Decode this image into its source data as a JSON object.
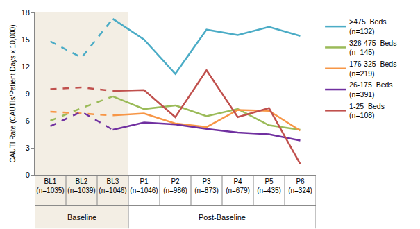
{
  "chart_data": {
    "type": "line",
    "y_label": "CAUTI Rate (CAUTIs/Patient Days x 10,000)",
    "categories": [
      "BL1\n(n=1035)",
      "BL2\n(n=1039)",
      "BL3\n(n=1046)",
      "P1\n(n=1046)",
      "P2\n(n=986)",
      "P3\n(n=873)",
      "P4\n(n=679)",
      "P5\n(n=435)",
      "P6\n(n=324)"
    ],
    "groups": [
      {
        "label": "Baseline",
        "count": 3,
        "line_style": "dashed"
      },
      {
        "label": "Post-Baseline",
        "count": 6,
        "line_style": "solid"
      }
    ],
    "series": [
      {
        "name": ">475  Beds\n(n=132)",
        "color": "#4bacc6",
        "values": [
          14.8,
          13.0,
          17.3,
          15.0,
          11.2,
          16.1,
          15.5,
          16.4,
          15.4
        ]
      },
      {
        "name": "326-475  Beds\n(n=145)",
        "color": "#9bbb59",
        "values": [
          6.0,
          7.4,
          8.7,
          7.3,
          7.7,
          6.5,
          7.3,
          5.5,
          5.0
        ]
      },
      {
        "name": "176-325  Beds\n(n=219)",
        "color": "#f79646",
        "values": [
          7.0,
          6.8,
          6.6,
          6.8,
          5.7,
          5.3,
          7.2,
          7.1,
          4.9
        ]
      },
      {
        "name": "26-175  Beds\n(n=391)",
        "color": "#7030a0",
        "values": [
          5.4,
          7.0,
          5.0,
          5.8,
          5.6,
          5.1,
          4.7,
          4.5,
          3.8
        ]
      },
      {
        "name": "1-25  Beds\n(n=108)",
        "color": "#c0504d",
        "values": [
          9.5,
          9.7,
          9.3,
          9.4,
          6.4,
          11.6,
          6.4,
          7.4,
          1.2
        ]
      }
    ],
    "ylim": [
      0,
      18
    ],
    "yticks": [
      0,
      3,
      6,
      9,
      12,
      15,
      18
    ],
    "grid": false,
    "legend": "right"
  }
}
